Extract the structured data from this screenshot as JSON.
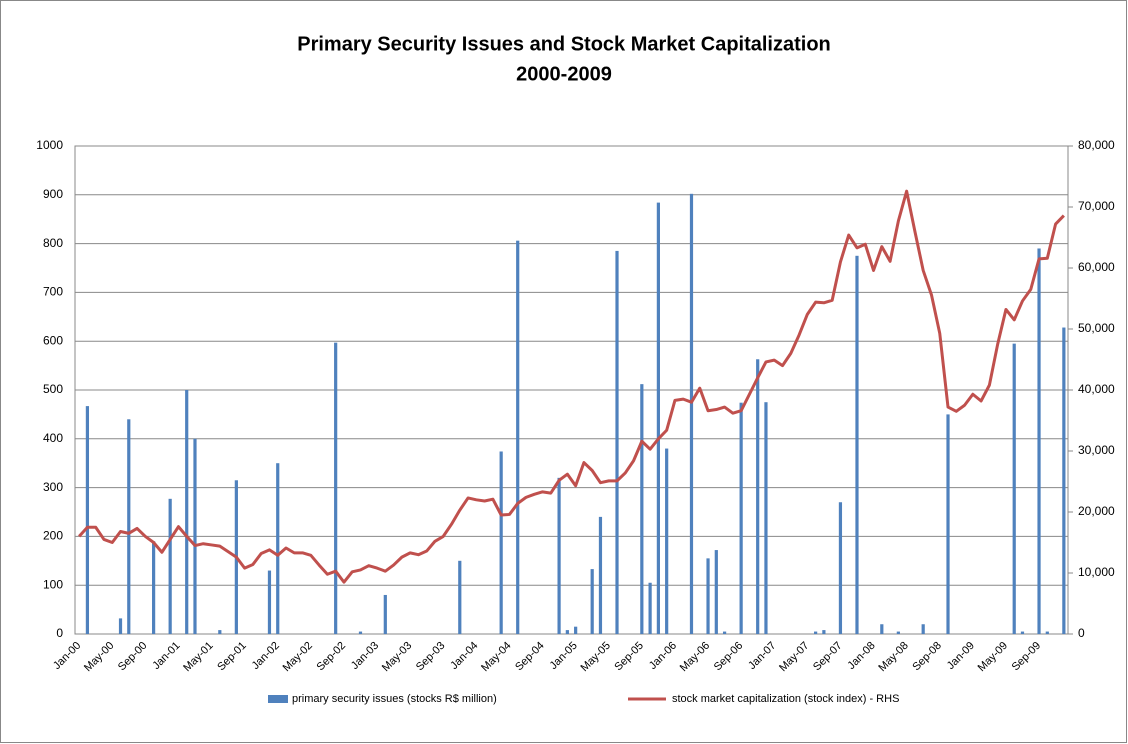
{
  "chart_data": {
    "type": "combo",
    "title": "Primary Security Issues and Stock Market Capitalization",
    "subtitle": "2000-2009",
    "categories": [
      "Jan-00",
      null,
      null,
      null,
      "May-00",
      null,
      null,
      null,
      "Sep-00",
      null,
      null,
      null,
      "Jan-01",
      null,
      null,
      null,
      "May-01",
      null,
      null,
      null,
      "Sep-01",
      null,
      null,
      null,
      "Jan-02",
      null,
      null,
      null,
      "May-02",
      null,
      null,
      null,
      "Sep-02",
      null,
      null,
      null,
      "Jan-03",
      null,
      null,
      null,
      "May-03",
      null,
      null,
      null,
      "Sep-03",
      null,
      null,
      null,
      "Jan-04",
      null,
      null,
      null,
      "May-04",
      null,
      null,
      null,
      "Sep-04",
      null,
      null,
      null,
      "Jan-05",
      null,
      null,
      null,
      "May-05",
      null,
      null,
      null,
      "Sep-05",
      null,
      null,
      null,
      "Jan-06",
      null,
      null,
      null,
      "May-06",
      null,
      null,
      null,
      "Sep-06",
      null,
      null,
      null,
      "Jan-07",
      null,
      null,
      null,
      "May-07",
      null,
      null,
      null,
      "Sep-07",
      null,
      null,
      null,
      "Jan-08",
      null,
      null,
      null,
      "May-08",
      null,
      null,
      null,
      "Sep-08",
      null,
      null,
      null,
      "Jan-09",
      null,
      null,
      null,
      "May-09",
      null,
      null,
      null,
      "Sep-09",
      null,
      null,
      null
    ],
    "series": [
      {
        "name": "primary security issues (stocks R$ million)",
        "type": "bar",
        "color": "#4f81bd",
        "values": [
          0,
          467,
          0,
          0,
          0,
          32,
          440,
          0,
          0,
          190,
          0,
          277,
          0,
          500,
          400,
          0,
          0,
          8,
          0,
          315,
          0,
          0,
          0,
          130,
          350,
          0,
          0,
          0,
          0,
          0,
          0,
          597,
          0,
          0,
          5,
          0,
          0,
          80,
          0,
          0,
          0,
          0,
          0,
          0,
          0,
          0,
          150,
          0,
          0,
          0,
          0,
          374,
          0,
          806,
          0,
          0,
          0,
          0,
          320,
          8,
          15,
          0,
          133,
          240,
          0,
          785,
          0,
          0,
          512,
          105,
          884,
          380,
          0,
          0,
          902,
          0,
          155,
          172,
          5,
          0,
          474,
          0,
          563,
          475,
          0,
          0,
          0,
          0,
          0,
          5,
          8,
          0,
          270,
          0,
          775,
          0,
          0,
          20,
          0,
          5,
          0,
          0,
          20,
          0,
          0,
          450,
          0,
          0,
          0,
          0,
          0,
          0,
          0,
          595,
          5,
          0,
          790,
          5,
          0,
          628
        ]
      },
      {
        "name": "stock market capitalization  (stock index) - RHS",
        "type": "line",
        "axis": "y2",
        "color": "#c0504d",
        "values": [
          16000,
          17500,
          17500,
          15500,
          15000,
          16800,
          16500,
          17300,
          16000,
          15000,
          13400,
          15500,
          17600,
          16000,
          14500,
          14800,
          14600,
          14400,
          13500,
          12600,
          10800,
          11400,
          13200,
          13800,
          12900,
          14100,
          13300,
          13300,
          12900,
          11300,
          9800,
          10300,
          8500,
          10200,
          10500,
          11200,
          10800,
          10300,
          11300,
          12600,
          13300,
          13000,
          13600,
          15200,
          16000,
          18000,
          20300,
          22300,
          22000,
          21800,
          22100,
          19500,
          19600,
          21400,
          22400,
          22900,
          23300,
          23100,
          25200,
          26200,
          24300,
          28100,
          26800,
          24800,
          25100,
          25100,
          26400,
          28400,
          31600,
          30300,
          32000,
          33400,
          38300,
          38500,
          38000,
          40300,
          36600,
          36800,
          37200,
          36200,
          36600,
          39300,
          42000,
          44600,
          44900,
          44000,
          46000,
          49000,
          52400,
          54400,
          54300,
          54700,
          61000,
          65400,
          63300,
          63900,
          59600,
          63500,
          61100,
          67700,
          72600,
          66000,
          59600,
          55600,
          49300,
          37200,
          36500,
          37500,
          39300,
          38200,
          40800,
          47500,
          53200,
          51500,
          54600,
          56500,
          61500,
          61600,
          67200,
          68600
        ]
      }
    ],
    "ylim": [
      0,
      1000
    ],
    "yticks": [
      0,
      100,
      200,
      300,
      400,
      500,
      600,
      700,
      800,
      900,
      1000
    ],
    "y2lim": [
      0,
      80000
    ],
    "y2ticks": [
      0,
      {
        "value": 10000,
        "label": "10,000"
      },
      {
        "value": 20000,
        "label": "20,000"
      },
      {
        "value": 30000,
        "label": "30,000"
      },
      {
        "value": 40000,
        "label": "40,000"
      },
      {
        "value": 50000,
        "label": "50,000"
      },
      {
        "value": 60000,
        "label": "60,000"
      },
      {
        "value": 70000,
        "label": "70,000"
      },
      {
        "value": 80000,
        "label": "80,000"
      }
    ],
    "grid": true,
    "legend": "bottom"
  }
}
